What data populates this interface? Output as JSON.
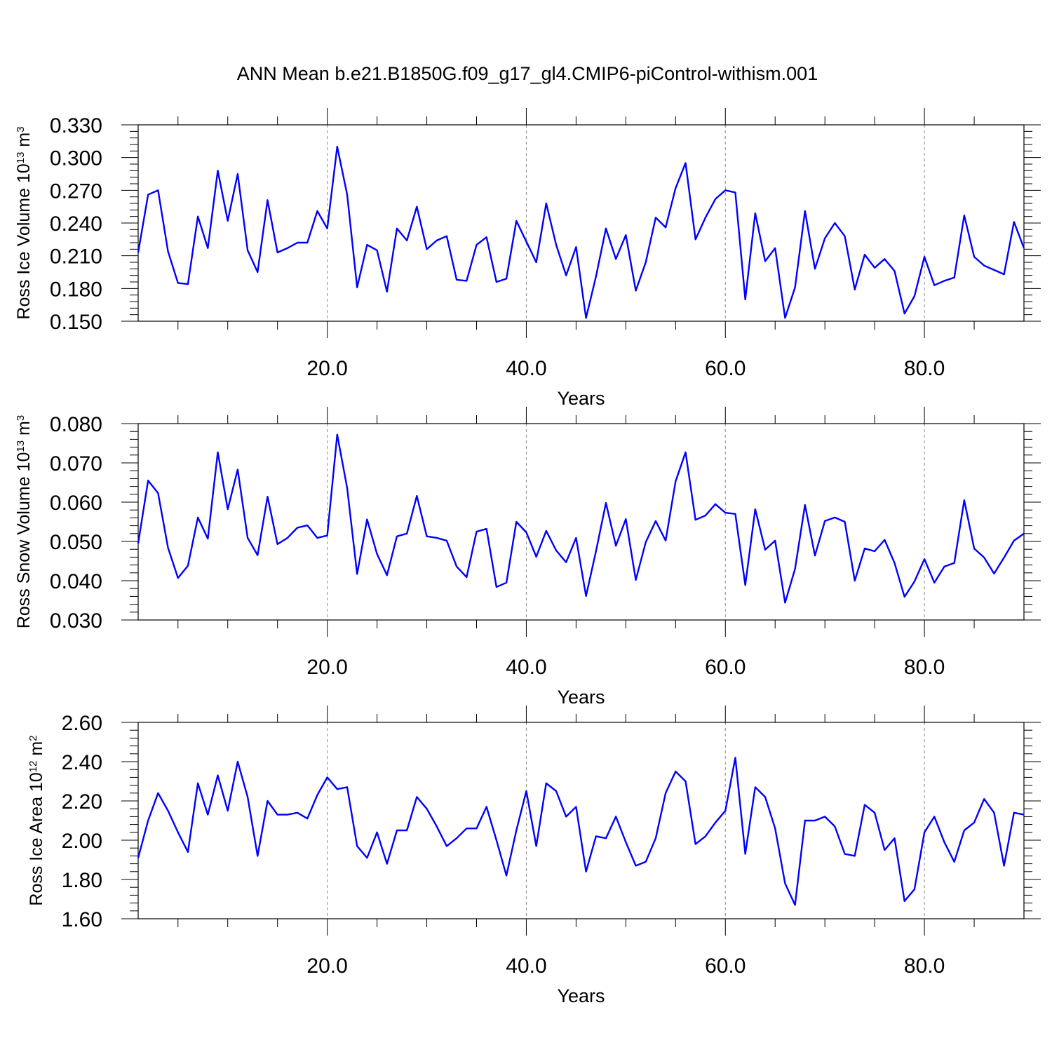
{
  "title": "ANN Mean b.e21.B1850G.f09_g17_gl4.CMIP6-piControl-withism.001",
  "line_color": "#0000ff",
  "chart_data": [
    {
      "type": "line",
      "xlabel": "Years",
      "ylabel_text": "Ross Ice Volume 10",
      "ylabel_exp": "13",
      "ylabel_unit": " m",
      "ylabel_unit_exp": "3",
      "xlim": [
        1,
        90
      ],
      "ylim": [
        0.15,
        0.33
      ],
      "yticks": [
        "0.150",
        "0.180",
        "0.210",
        "0.240",
        "0.270",
        "0.300",
        "0.330"
      ],
      "xticks": [
        "20.0",
        "40.0",
        "60.0",
        "80.0"
      ],
      "grid": "vertical dashed at x ticks",
      "x_start": 1,
      "values": [
        0.213,
        0.266,
        0.27,
        0.214,
        0.185,
        0.184,
        0.246,
        0.217,
        0.288,
        0.242,
        0.285,
        0.215,
        0.195,
        0.261,
        0.213,
        0.217,
        0.222,
        0.222,
        0.251,
        0.235,
        0.31,
        0.266,
        0.181,
        0.22,
        0.215,
        0.177,
        0.235,
        0.224,
        0.255,
        0.216,
        0.224,
        0.228,
        0.188,
        0.187,
        0.22,
        0.227,
        0.186,
        0.189,
        0.242,
        0.223,
        0.204,
        0.258,
        0.22,
        0.192,
        0.218,
        0.153,
        0.191,
        0.235,
        0.207,
        0.229,
        0.178,
        0.204,
        0.245,
        0.236,
        0.272,
        0.295,
        0.225,
        0.245,
        0.262,
        0.27,
        0.268,
        0.17,
        0.249,
        0.205,
        0.217,
        0.153,
        0.181,
        0.251,
        0.198,
        0.226,
        0.24,
        0.228,
        0.179,
        0.211,
        0.199,
        0.207,
        0.196,
        0.157,
        0.173,
        0.209,
        0.183,
        0.187,
        0.19,
        0.247,
        0.209,
        0.201,
        0.197,
        0.193,
        0.241,
        0.217
      ]
    },
    {
      "type": "line",
      "xlabel": "Years",
      "ylabel_text": "Ross Snow Volume 10",
      "ylabel_exp": "13",
      "ylabel_unit": " m",
      "ylabel_unit_exp": "3",
      "xlim": [
        1,
        90
      ],
      "ylim": [
        0.03,
        0.08
      ],
      "yticks": [
        "0.030",
        "0.040",
        "0.050",
        "0.060",
        "0.070",
        "0.080"
      ],
      "xticks": [
        "20.0",
        "40.0",
        "60.0",
        "80.0"
      ],
      "grid": "vertical dashed at x ticks",
      "x_start": 1,
      "values": [
        0.0495,
        0.0655,
        0.0623,
        0.0484,
        0.0407,
        0.0438,
        0.0561,
        0.0507,
        0.0727,
        0.0582,
        0.0683,
        0.0509,
        0.0465,
        0.0614,
        0.0493,
        0.0509,
        0.0535,
        0.0541,
        0.0509,
        0.0515,
        0.0772,
        0.0636,
        0.0417,
        0.0556,
        0.0468,
        0.0414,
        0.0513,
        0.052,
        0.0616,
        0.0513,
        0.0509,
        0.0502,
        0.0436,
        0.0409,
        0.0525,
        0.0532,
        0.0384,
        0.0395,
        0.055,
        0.0523,
        0.0461,
        0.0527,
        0.0477,
        0.0447,
        0.0509,
        0.0361,
        0.0475,
        0.0598,
        0.0489,
        0.0557,
        0.0402,
        0.0498,
        0.0552,
        0.0502,
        0.0653,
        0.0727,
        0.0555,
        0.0566,
        0.0595,
        0.0573,
        0.057,
        0.0389,
        0.0582,
        0.0479,
        0.0502,
        0.0344,
        0.043,
        0.0593,
        0.0464,
        0.0552,
        0.0561,
        0.055,
        0.04,
        0.0482,
        0.0475,
        0.0504,
        0.0445,
        0.0359,
        0.0398,
        0.0455,
        0.0395,
        0.0436,
        0.0445,
        0.0605,
        0.0482,
        0.0459,
        0.0418,
        0.0459,
        0.0502,
        0.052
      ]
    },
    {
      "type": "line",
      "xlabel": "Years",
      "ylabel_text": "Ross Ice Area 10",
      "ylabel_exp": "12",
      "ylabel_unit": " m",
      "ylabel_unit_exp": "2",
      "xlim": [
        1,
        90
      ],
      "ylim": [
        1.6,
        2.6
      ],
      "yticks": [
        "1.60",
        "1.80",
        "2.00",
        "2.20",
        "2.40",
        "2.60"
      ],
      "xticks": [
        "20.0",
        "40.0",
        "60.0",
        "80.0"
      ],
      "grid": "vertical dashed at x ticks",
      "x_start": 1,
      "values": [
        1.91,
        2.1,
        2.24,
        2.15,
        2.04,
        1.94,
        2.29,
        2.13,
        2.33,
        2.15,
        2.4,
        2.22,
        1.92,
        2.2,
        2.13,
        2.13,
        2.14,
        2.11,
        2.23,
        2.32,
        2.26,
        2.27,
        1.97,
        1.91,
        2.04,
        1.88,
        2.05,
        2.05,
        2.22,
        2.16,
        2.07,
        1.97,
        2.01,
        2.06,
        2.06,
        2.17,
        2.0,
        1.82,
        2.05,
        2.25,
        1.97,
        2.29,
        2.25,
        2.12,
        2.17,
        1.84,
        2.02,
        2.01,
        2.12,
        1.99,
        1.87,
        1.89,
        2.01,
        2.24,
        2.35,
        2.3,
        1.98,
        2.02,
        2.09,
        2.15,
        2.42,
        1.93,
        2.27,
        2.22,
        2.06,
        1.78,
        1.67,
        2.1,
        2.1,
        2.12,
        2.07,
        1.93,
        1.92,
        2.18,
        2.14,
        1.95,
        2.01,
        1.69,
        1.75,
        2.04,
        2.12,
        1.99,
        1.89,
        2.05,
        2.09,
        2.21,
        2.14,
        1.87,
        2.14,
        2.13
      ]
    }
  ]
}
